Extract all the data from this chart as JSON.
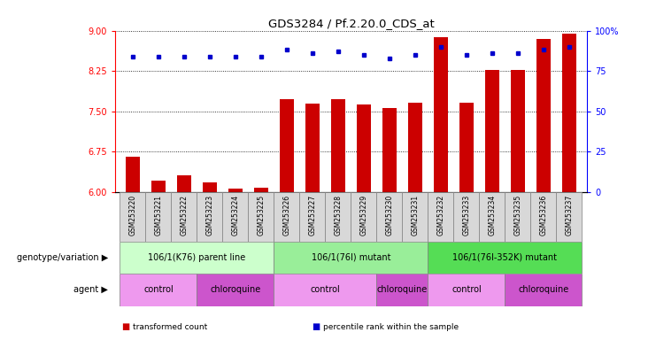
{
  "title": "GDS3284 / Pf.2.20.0_CDS_at",
  "samples": [
    "GSM253220",
    "GSM253221",
    "GSM253222",
    "GSM253223",
    "GSM253224",
    "GSM253225",
    "GSM253226",
    "GSM253227",
    "GSM253228",
    "GSM253229",
    "GSM253230",
    "GSM253231",
    "GSM253232",
    "GSM253233",
    "GSM253234",
    "GSM253235",
    "GSM253236",
    "GSM253237"
  ],
  "transformed_count": [
    6.65,
    6.22,
    6.31,
    6.18,
    6.07,
    6.08,
    7.72,
    7.65,
    7.72,
    7.63,
    7.56,
    7.66,
    8.88,
    7.66,
    8.27,
    8.27,
    8.85,
    8.95
  ],
  "percentile_rank": [
    84,
    84,
    84,
    84,
    84,
    84,
    88,
    86,
    87,
    85,
    83,
    85,
    90,
    85,
    86,
    86,
    88,
    90
  ],
  "ylim_left": [
    6.0,
    9.0
  ],
  "yticks_left": [
    6.0,
    6.75,
    7.5,
    8.25,
    9.0
  ],
  "ylim_right": [
    0,
    100
  ],
  "yticks_right": [
    0,
    25,
    50,
    75,
    100
  ],
  "ytick_labels_right": [
    "0",
    "25",
    "50",
    "75",
    "100%"
  ],
  "bar_color": "#cc0000",
  "dot_color": "#0000cc",
  "genotype_groups": [
    {
      "label": "106/1(K76) parent line",
      "start": 0,
      "end": 5,
      "color": "#ccffcc"
    },
    {
      "label": "106/1(76I) mutant",
      "start": 6,
      "end": 11,
      "color": "#99ee99"
    },
    {
      "label": "106/1(76I-352K) mutant",
      "start": 12,
      "end": 17,
      "color": "#55dd55"
    }
  ],
  "agent_groups": [
    {
      "label": "control",
      "start": 0,
      "end": 2,
      "color": "#ee99ee"
    },
    {
      "label": "chloroquine",
      "start": 3,
      "end": 5,
      "color": "#cc55cc"
    },
    {
      "label": "control",
      "start": 6,
      "end": 9,
      "color": "#ee99ee"
    },
    {
      "label": "chloroquine",
      "start": 10,
      "end": 11,
      "color": "#cc55cc"
    },
    {
      "label": "control",
      "start": 12,
      "end": 14,
      "color": "#ee99ee"
    },
    {
      "label": "chloroquine",
      "start": 15,
      "end": 17,
      "color": "#cc55cc"
    }
  ],
  "legend_items": [
    {
      "label": "transformed count",
      "color": "#cc0000"
    },
    {
      "label": "percentile rank within the sample",
      "color": "#0000cc"
    }
  ],
  "row_label_genotype": "genotype/variation",
  "row_label_agent": "agent",
  "background_color": "#ffffff"
}
